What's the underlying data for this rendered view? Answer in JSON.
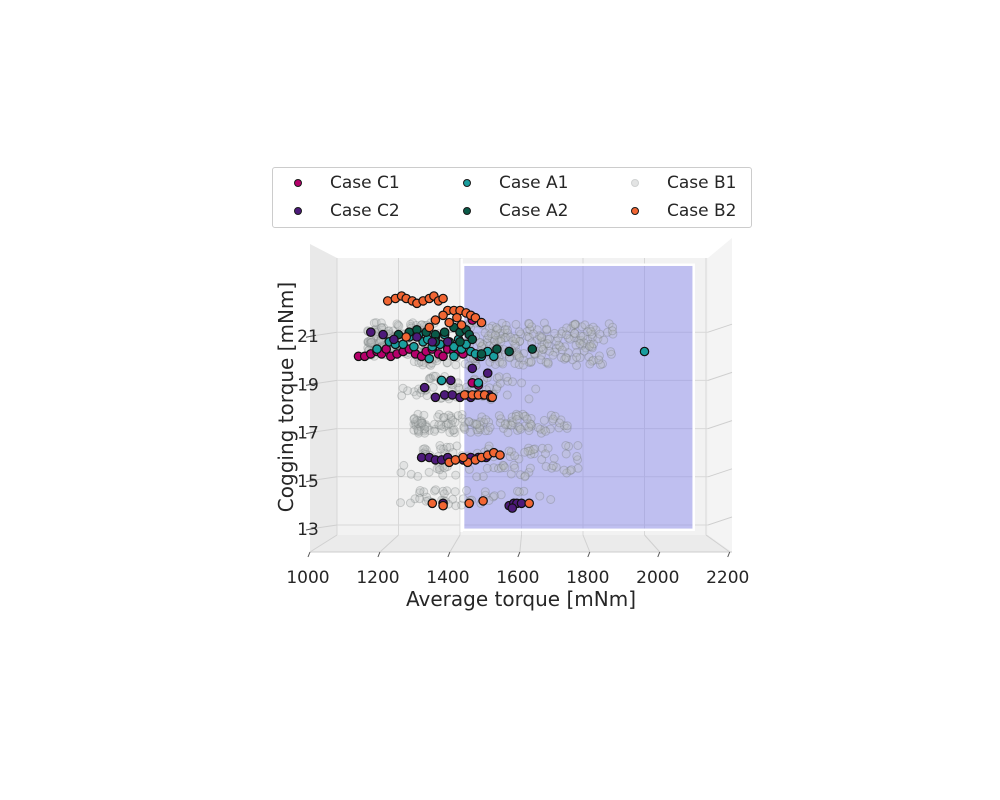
{
  "chart_data": {
    "type": "scatter",
    "projection": "3d",
    "xlabel": "Average torque [mNm]",
    "ylabel": "Cogging torque [mNm]",
    "xlim": [
      950,
      2300
    ],
    "ylim": [
      11.8,
      24.6
    ],
    "xticks": [
      "1000",
      "1200",
      "1400",
      "1600",
      "1800",
      "2000",
      "2200"
    ],
    "yticks": [
      "13",
      "15",
      "17",
      "19",
      "21"
    ],
    "feasible_region": {
      "x": [
        1410,
        2160
      ],
      "y": [
        12.8,
        23.8
      ],
      "color": "#8080ee"
    },
    "legend": {
      "placement": "top-center",
      "ncol": 3
    },
    "series": [
      {
        "name": "Case C1",
        "color": "#b5006b",
        "points": [
          [
            1070,
            20.0
          ],
          [
            1090,
            20.0
          ],
          [
            1110,
            20.1
          ],
          [
            1130,
            20.2
          ],
          [
            1145,
            20.1
          ],
          [
            1160,
            20.3
          ],
          [
            1175,
            20.0
          ],
          [
            1195,
            20.1
          ],
          [
            1215,
            20.2
          ],
          [
            1235,
            20.3
          ],
          [
            1255,
            20.1
          ],
          [
            1275,
            20.0
          ],
          [
            1290,
            20.2
          ],
          [
            1310,
            20.3
          ],
          [
            1330,
            20.1
          ],
          [
            1345,
            20.0
          ],
          [
            1360,
            20.3
          ],
          [
            1380,
            20.2
          ],
          [
            1395,
            20.2
          ],
          [
            1410,
            20.1
          ],
          [
            1440,
            18.9
          ],
          [
            1460,
            18.8
          ],
          [
            1440,
            21.5
          ],
          [
            1460,
            20.0
          ]
        ]
      },
      {
        "name": "Case A1",
        "color": "#1a9e9e",
        "points": [
          [
            1130,
            20.3
          ],
          [
            1170,
            20.6
          ],
          [
            1190,
            20.5
          ],
          [
            1215,
            20.5
          ],
          [
            1235,
            20.8
          ],
          [
            1250,
            20.4
          ],
          [
            1265,
            20.9
          ],
          [
            1280,
            20.6
          ],
          [
            1295,
            20.7
          ],
          [
            1310,
            20.4
          ],
          [
            1320,
            20.8
          ],
          [
            1335,
            20.5
          ],
          [
            1350,
            20.9
          ],
          [
            1365,
            20.6
          ],
          [
            1380,
            20.4
          ],
          [
            1395,
            20.7
          ],
          [
            1405,
            20.3
          ],
          [
            1420,
            20.5
          ],
          [
            1435,
            20.2
          ],
          [
            1450,
            20.1
          ],
          [
            1470,
            20.0
          ],
          [
            1490,
            20.2
          ],
          [
            1510,
            20.0
          ],
          [
            1340,
            19.0
          ],
          [
            1460,
            18.9
          ],
          [
            1300,
            19.9
          ],
          [
            1380,
            20.0
          ],
          [
            2000,
            20.2
          ]
        ]
      },
      {
        "name": "Case A2",
        "color": "#0a5a48",
        "points": [
          [
            1200,
            20.9
          ],
          [
            1235,
            21.0
          ],
          [
            1260,
            21.1
          ],
          [
            1290,
            21.0
          ],
          [
            1320,
            20.9
          ],
          [
            1350,
            21.0
          ],
          [
            1380,
            21.2
          ],
          [
            1400,
            21.0
          ],
          [
            1420,
            21.1
          ],
          [
            1430,
            20.9
          ],
          [
            1440,
            20.7
          ],
          [
            1520,
            20.3
          ],
          [
            1635,
            20.3
          ],
          [
            1320,
            20.6
          ],
          [
            1400,
            20.6
          ],
          [
            1470,
            20.1
          ],
          [
            1560,
            20.2
          ]
        ]
      },
      {
        "name": "Case C2",
        "color": "#4d1a7a",
        "points": [
          [
            1110,
            21.0
          ],
          [
            1150,
            20.9
          ],
          [
            1185,
            20.7
          ],
          [
            1260,
            20.8
          ],
          [
            1310,
            20.6
          ],
          [
            1360,
            20.6
          ],
          [
            1440,
            19.5
          ],
          [
            1490,
            19.3
          ],
          [
            1370,
            19.0
          ],
          [
            1285,
            18.7
          ],
          [
            1320,
            18.3
          ],
          [
            1350,
            18.4
          ],
          [
            1375,
            18.4
          ],
          [
            1400,
            18.3
          ],
          [
            1420,
            18.4
          ],
          [
            1435,
            18.3
          ],
          [
            1455,
            18.4
          ],
          [
            1475,
            18.4
          ],
          [
            1495,
            18.4
          ],
          [
            1275,
            15.8
          ],
          [
            1300,
            15.8
          ],
          [
            1320,
            15.7
          ],
          [
            1340,
            15.7
          ],
          [
            1360,
            15.8
          ],
          [
            1385,
            15.7
          ],
          [
            1410,
            15.7
          ],
          [
            1435,
            15.8
          ],
          [
            1460,
            15.8
          ],
          [
            1485,
            15.8
          ],
          [
            1345,
            13.9
          ],
          [
            1560,
            13.8
          ],
          [
            1575,
            13.9
          ],
          [
            1585,
            13.9
          ],
          [
            1600,
            13.9
          ],
          [
            1570,
            13.7
          ]
        ]
      },
      {
        "name": "Case B2",
        "color": "#f26633",
        "points": [
          [
            1165,
            22.3
          ],
          [
            1190,
            22.4
          ],
          [
            1210,
            22.5
          ],
          [
            1225,
            22.4
          ],
          [
            1245,
            22.3
          ],
          [
            1260,
            22.2
          ],
          [
            1280,
            22.3
          ],
          [
            1300,
            22.4
          ],
          [
            1315,
            22.5
          ],
          [
            1330,
            22.3
          ],
          [
            1345,
            22.4
          ],
          [
            1360,
            21.9
          ],
          [
            1380,
            21.9
          ],
          [
            1400,
            21.9
          ],
          [
            1420,
            21.8
          ],
          [
            1435,
            21.7
          ],
          [
            1450,
            21.6
          ],
          [
            1470,
            21.4
          ],
          [
            1320,
            21.5
          ],
          [
            1345,
            21.7
          ],
          [
            1365,
            21.4
          ],
          [
            1390,
            21.6
          ],
          [
            1405,
            21.3
          ],
          [
            1300,
            21.2
          ],
          [
            1225,
            20.8
          ],
          [
            1415,
            18.4
          ],
          [
            1440,
            18.4
          ],
          [
            1460,
            18.4
          ],
          [
            1480,
            18.4
          ],
          [
            1500,
            18.3
          ],
          [
            1425,
            15.6
          ],
          [
            1450,
            15.7
          ],
          [
            1470,
            15.8
          ],
          [
            1490,
            15.9
          ],
          [
            1510,
            16.0
          ],
          [
            1530,
            15.9
          ],
          [
            1365,
            15.6
          ],
          [
            1385,
            15.7
          ],
          [
            1410,
            15.8
          ],
          [
            1310,
            13.9
          ],
          [
            1345,
            13.8
          ],
          [
            1430,
            13.9
          ],
          [
            1475,
            14.0
          ],
          [
            1625,
            13.9
          ],
          [
            1505,
            18.3
          ]
        ]
      }
    ],
    "background_series": {
      "name": "Case B1",
      "color": "#b0b5b5",
      "clusters": [
        {
          "x": [
            1100,
            1900
          ],
          "y": [
            20.0,
            21.4
          ],
          "count": 330
        },
        {
          "x": [
            1250,
            1900
          ],
          "y": [
            19.6,
            20.0
          ],
          "count": 60
        },
        {
          "x": [
            1300,
            1650
          ],
          "y": [
            18.6,
            19.2
          ],
          "count": 30
        },
        {
          "x": [
            1200,
            1650
          ],
          "y": [
            18.1,
            18.7
          ],
          "count": 30
        },
        {
          "x": [
            1250,
            1750
          ],
          "y": [
            16.8,
            17.6
          ],
          "count": 130
        },
        {
          "x": [
            1280,
            1800
          ],
          "y": [
            15.7,
            16.3
          ],
          "count": 50
        },
        {
          "x": [
            1200,
            1800
          ],
          "y": [
            15.0,
            15.5
          ],
          "count": 40
        },
        {
          "x": [
            1250,
            1700
          ],
          "y": [
            14.0,
            14.5
          ],
          "count": 25
        },
        {
          "x": [
            1200,
            1700
          ],
          "y": [
            13.8,
            14.1
          ],
          "count": 15
        }
      ]
    }
  }
}
